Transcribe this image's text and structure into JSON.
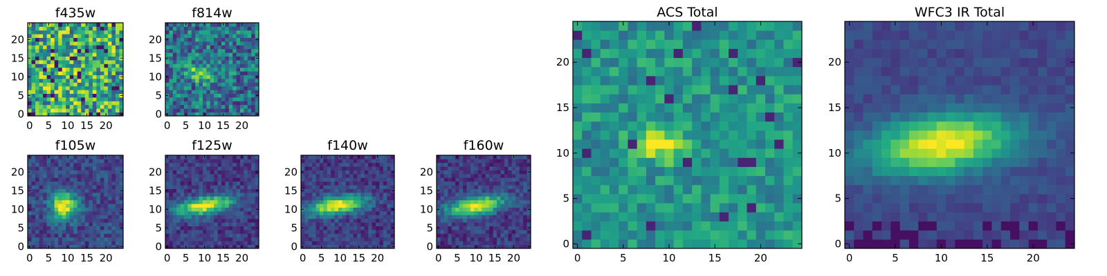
{
  "chart_data": [
    {
      "type": "heatmap",
      "title": "f435w",
      "profile": "noise",
      "grid_size": 25,
      "xlim": [
        0,
        24
      ],
      "ylim": [
        0,
        24
      ],
      "xticks": [
        "0",
        "5",
        "10",
        "15",
        "20"
      ],
      "yticks": [
        "0",
        "5",
        "10",
        "15",
        "20"
      ],
      "peak": [
        10,
        11
      ],
      "colormap": "viridis"
    },
    {
      "type": "heatmap",
      "title": "f814w",
      "profile": "weak-blob",
      "grid_size": 25,
      "xlim": [
        0,
        24
      ],
      "ylim": [
        0,
        24
      ],
      "xticks": [
        "0",
        "5",
        "10",
        "15",
        "20"
      ],
      "yticks": [
        "0",
        "5",
        "10",
        "15",
        "20"
      ],
      "peak": [
        9,
        11
      ],
      "colormap": "viridis"
    },
    {
      "type": "heatmap",
      "title": "f105w",
      "profile": "blob",
      "grid_size": 25,
      "xlim": [
        0,
        24
      ],
      "ylim": [
        0,
        24
      ],
      "xticks": [
        "0",
        "5",
        "10",
        "15",
        "20"
      ],
      "yticks": [
        "0",
        "5",
        "10",
        "15",
        "20"
      ],
      "peak": [
        9,
        11
      ],
      "colormap": "viridis"
    },
    {
      "type": "heatmap",
      "title": "f125w",
      "profile": "elongated",
      "grid_size": 25,
      "xlim": [
        0,
        24
      ],
      "ylim": [
        0,
        24
      ],
      "xticks": [
        "0",
        "5",
        "10",
        "15",
        "20"
      ],
      "yticks": [
        "0",
        "5",
        "10",
        "15",
        "20"
      ],
      "peak": [
        10,
        11
      ],
      "colormap": "viridis"
    },
    {
      "type": "heatmap",
      "title": "f140w",
      "profile": "elongated",
      "grid_size": 25,
      "xlim": [
        0,
        24
      ],
      "ylim": [
        0,
        24
      ],
      "xticks": [
        "0",
        "5",
        "10",
        "15",
        "20"
      ],
      "yticks": [
        "0",
        "5",
        "10",
        "15",
        "20"
      ],
      "peak": [
        9,
        11
      ],
      "colormap": "viridis"
    },
    {
      "type": "heatmap",
      "title": "f160w",
      "profile": "elongated",
      "grid_size": 25,
      "xlim": [
        0,
        24
      ],
      "ylim": [
        0,
        24
      ],
      "xticks": [
        "0",
        "5",
        "10",
        "15",
        "20"
      ],
      "yticks": [
        "0",
        "5",
        "10",
        "15",
        "20"
      ],
      "peak": [
        10,
        11
      ],
      "colormap": "viridis"
    },
    {
      "type": "heatmap",
      "title": "ACS Total",
      "profile": "acs",
      "grid_size": 25,
      "xlim": [
        0,
        24
      ],
      "ylim": [
        0,
        24
      ],
      "xticks": [
        "0",
        "5",
        "10",
        "15",
        "20"
      ],
      "yticks": [
        "0",
        "5",
        "10",
        "15",
        "20"
      ],
      "peak": [
        9,
        11
      ],
      "colormap": "viridis"
    },
    {
      "type": "heatmap",
      "title": "WFC3 IR Total",
      "profile": "ir",
      "grid_size": 25,
      "xlim": [
        0,
        24
      ],
      "ylim": [
        0,
        24
      ],
      "xticks": [
        "0",
        "5",
        "10",
        "15",
        "20"
      ],
      "yticks": [
        "0",
        "5",
        "10",
        "15",
        "20"
      ],
      "peak": [
        10,
        11
      ],
      "colormap": "viridis"
    }
  ]
}
